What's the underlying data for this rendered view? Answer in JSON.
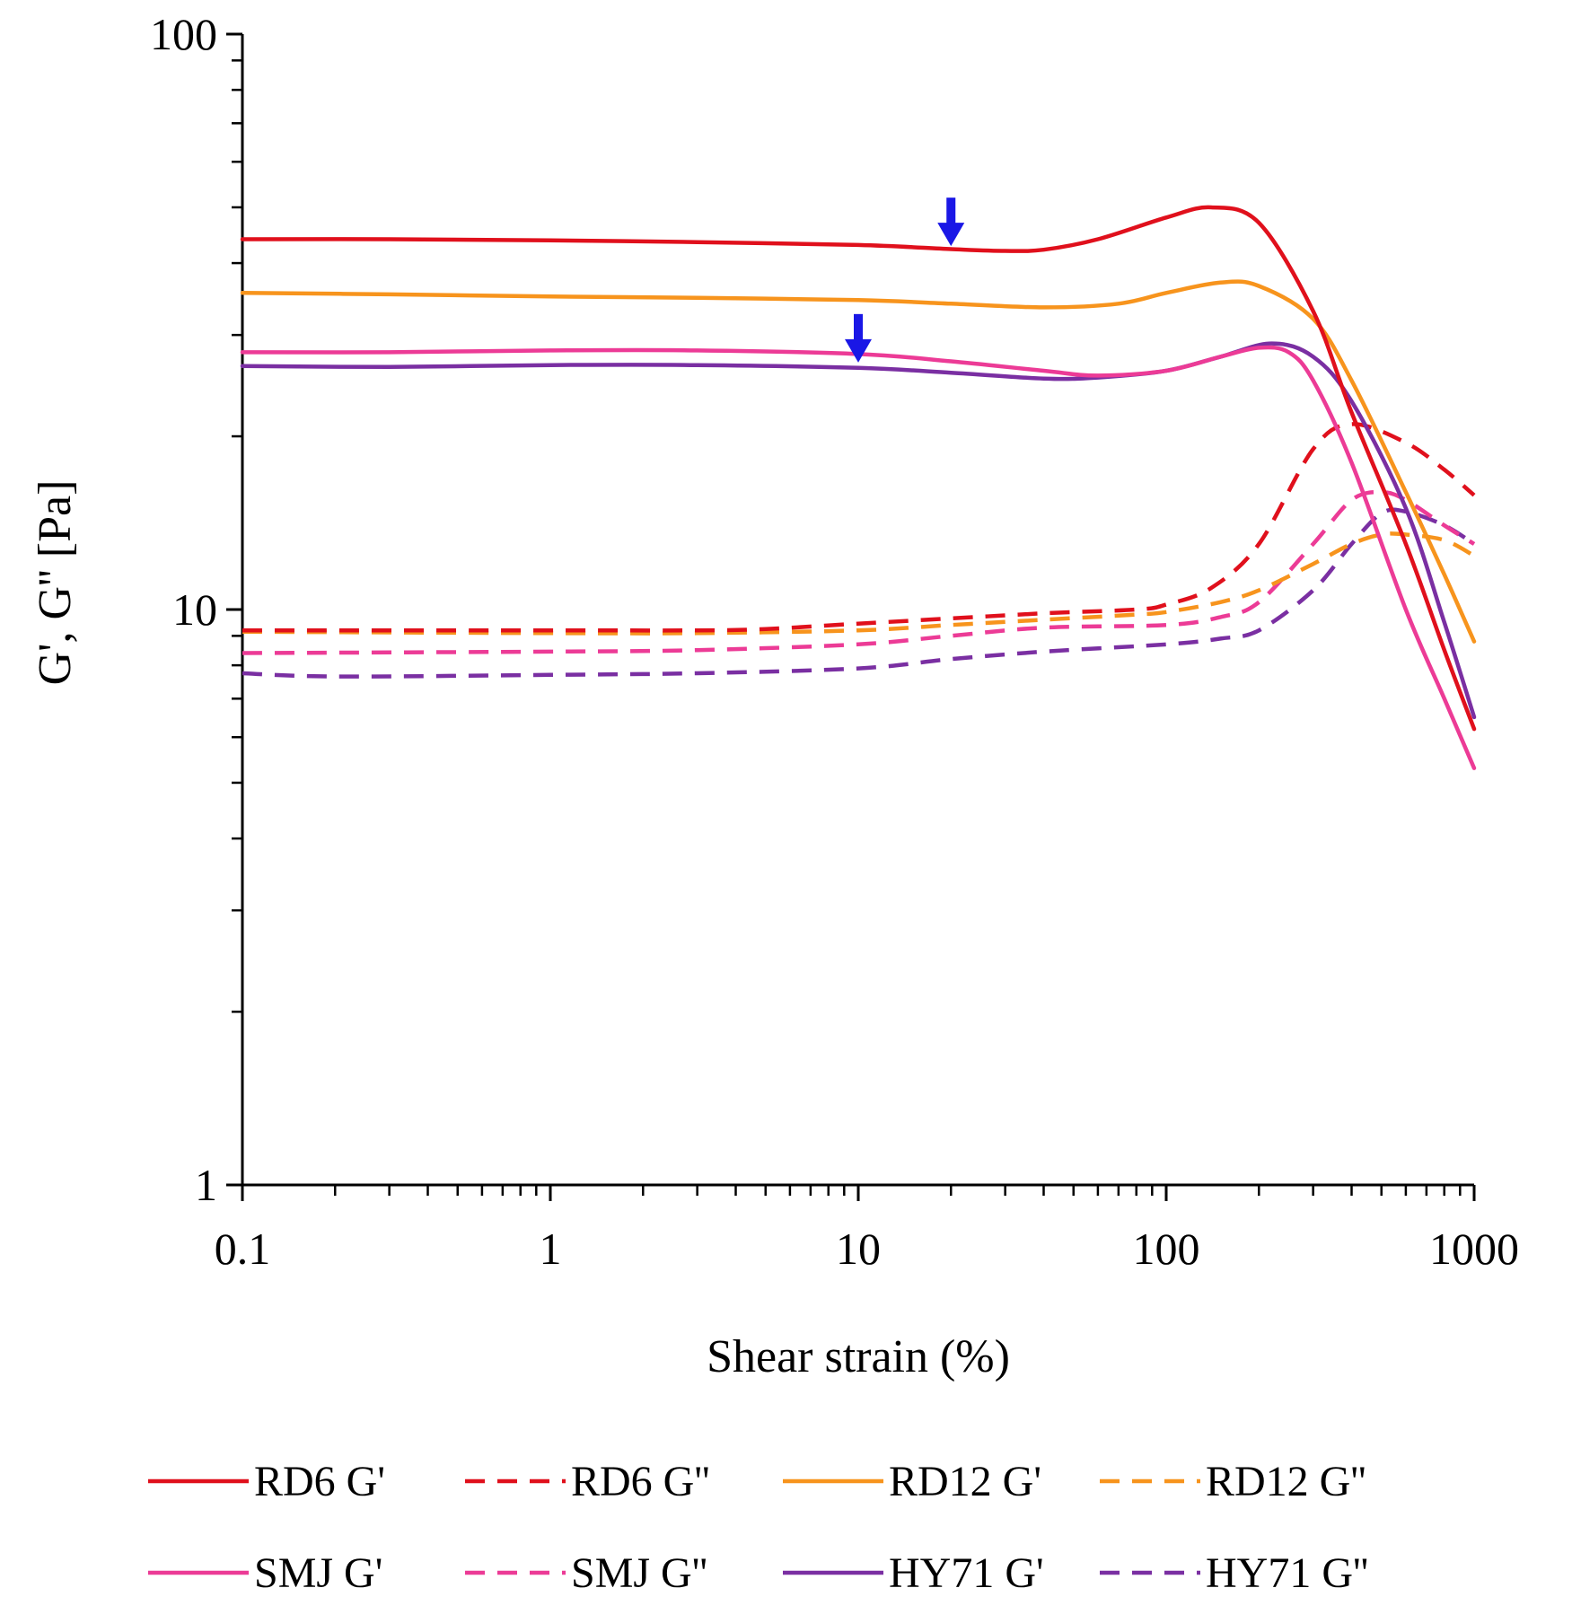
{
  "chart_data": {
    "type": "line",
    "xlabel": "Shear strain (%)",
    "ylabel": "G', G'' [Pa]",
    "x_scale": "log",
    "y_scale": "log",
    "xlim": [
      0.1,
      1000
    ],
    "ylim": [
      1,
      100
    ],
    "x_ticks": [
      0.1,
      1,
      10,
      100,
      1000
    ],
    "x_tick_labels": [
      "0.1",
      "1",
      "10",
      "100",
      "1000"
    ],
    "y_ticks": [
      1,
      10,
      100
    ],
    "y_tick_labels": [
      "1",
      "10",
      "100"
    ],
    "grid": false,
    "legend_position": "bottom",
    "series": [
      {
        "name": "RD6 G'",
        "color": "#e0101c",
        "dash": false,
        "points": [
          [
            0.1,
            44
          ],
          [
            0.3,
            44
          ],
          [
            1,
            43.8
          ],
          [
            3,
            43.5
          ],
          [
            10,
            43
          ],
          [
            20,
            42.3
          ],
          [
            30,
            42
          ],
          [
            40,
            42.2
          ],
          [
            60,
            44
          ],
          [
            100,
            48
          ],
          [
            140,
            50
          ],
          [
            200,
            47
          ],
          [
            300,
            33
          ],
          [
            400,
            22
          ],
          [
            600,
            13
          ],
          [
            800,
            8.5
          ],
          [
            1000,
            6.2
          ]
        ]
      },
      {
        "name": "RD6 G''",
        "color": "#e0101c",
        "dash": true,
        "points": [
          [
            0.1,
            9.2
          ],
          [
            1,
            9.2
          ],
          [
            3,
            9.2
          ],
          [
            5,
            9.25
          ],
          [
            10,
            9.45
          ],
          [
            20,
            9.65
          ],
          [
            40,
            9.85
          ],
          [
            80,
            10
          ],
          [
            100,
            10.2
          ],
          [
            140,
            10.9
          ],
          [
            200,
            13
          ],
          [
            300,
            19
          ],
          [
            400,
            21
          ],
          [
            600,
            19.5
          ],
          [
            800,
            17.5
          ],
          [
            1000,
            15.8
          ]
        ]
      },
      {
        "name": "RD12 G'",
        "color": "#f7941d",
        "dash": false,
        "points": [
          [
            0.1,
            35.5
          ],
          [
            0.3,
            35.3
          ],
          [
            1,
            35
          ],
          [
            3,
            34.8
          ],
          [
            10,
            34.5
          ],
          [
            20,
            34
          ],
          [
            40,
            33.5
          ],
          [
            70,
            34
          ],
          [
            100,
            35.5
          ],
          [
            150,
            37
          ],
          [
            200,
            36.5
          ],
          [
            300,
            32
          ],
          [
            400,
            25
          ],
          [
            600,
            16
          ],
          [
            800,
            11.5
          ],
          [
            1000,
            8.8
          ]
        ]
      },
      {
        "name": "RD12 G''",
        "color": "#f7941d",
        "dash": true,
        "points": [
          [
            0.1,
            9.15
          ],
          [
            1,
            9.1
          ],
          [
            3,
            9.1
          ],
          [
            10,
            9.2
          ],
          [
            20,
            9.4
          ],
          [
            40,
            9.6
          ],
          [
            80,
            9.8
          ],
          [
            100,
            9.9
          ],
          [
            150,
            10.3
          ],
          [
            200,
            10.8
          ],
          [
            300,
            12
          ],
          [
            400,
            13
          ],
          [
            500,
            13.5
          ],
          [
            600,
            13.5
          ],
          [
            800,
            13.2
          ],
          [
            1000,
            12.4
          ]
        ]
      },
      {
        "name": "SMJ G'",
        "color": "#ec3b96",
        "dash": false,
        "points": [
          [
            0.1,
            28
          ],
          [
            0.3,
            28
          ],
          [
            1,
            28.2
          ],
          [
            3,
            28.2
          ],
          [
            10,
            27.8
          ],
          [
            20,
            27
          ],
          [
            40,
            26
          ],
          [
            60,
            25.5
          ],
          [
            100,
            26
          ],
          [
            150,
            27.5
          ],
          [
            200,
            28.5
          ],
          [
            250,
            28
          ],
          [
            300,
            25
          ],
          [
            400,
            18
          ],
          [
            600,
            10
          ],
          [
            800,
            7
          ],
          [
            1000,
            5.3
          ]
        ]
      },
      {
        "name": "SMJ G''",
        "color": "#ec3b96",
        "dash": true,
        "points": [
          [
            0.1,
            8.4
          ],
          [
            1,
            8.45
          ],
          [
            3,
            8.5
          ],
          [
            10,
            8.7
          ],
          [
            20,
            9
          ],
          [
            40,
            9.3
          ],
          [
            100,
            9.4
          ],
          [
            150,
            9.7
          ],
          [
            200,
            10.3
          ],
          [
            300,
            13
          ],
          [
            400,
            15.5
          ],
          [
            500,
            16
          ],
          [
            600,
            15.5
          ],
          [
            800,
            14
          ],
          [
            1000,
            13
          ]
        ]
      },
      {
        "name": "HY71 G'",
        "color": "#7a2fa2",
        "dash": false,
        "points": [
          [
            0.1,
            26.5
          ],
          [
            0.3,
            26.4
          ],
          [
            1,
            26.6
          ],
          [
            3,
            26.6
          ],
          [
            10,
            26.3
          ],
          [
            20,
            25.8
          ],
          [
            40,
            25.2
          ],
          [
            60,
            25.3
          ],
          [
            100,
            26
          ],
          [
            150,
            27.5
          ],
          [
            220,
            29
          ],
          [
            300,
            27.5
          ],
          [
            400,
            23
          ],
          [
            600,
            15
          ],
          [
            800,
            9.5
          ],
          [
            1000,
            6.5
          ]
        ]
      },
      {
        "name": "HY71 G''",
        "color": "#7a2fa2",
        "dash": true,
        "points": [
          [
            0.1,
            7.75
          ],
          [
            0.2,
            7.65
          ],
          [
            1,
            7.7
          ],
          [
            3,
            7.75
          ],
          [
            10,
            7.9
          ],
          [
            20,
            8.2
          ],
          [
            40,
            8.45
          ],
          [
            100,
            8.7
          ],
          [
            150,
            8.9
          ],
          [
            200,
            9.2
          ],
          [
            300,
            10.8
          ],
          [
            400,
            13
          ],
          [
            500,
            14.7
          ],
          [
            600,
            14.8
          ],
          [
            800,
            14
          ],
          [
            1000,
            13
          ]
        ]
      }
    ],
    "arrows": [
      {
        "x": 20,
        "y": 47,
        "color": "#1a17e6",
        "direction": "down"
      },
      {
        "x": 10,
        "y": 29.5,
        "color": "#1a17e6",
        "direction": "down"
      }
    ]
  }
}
